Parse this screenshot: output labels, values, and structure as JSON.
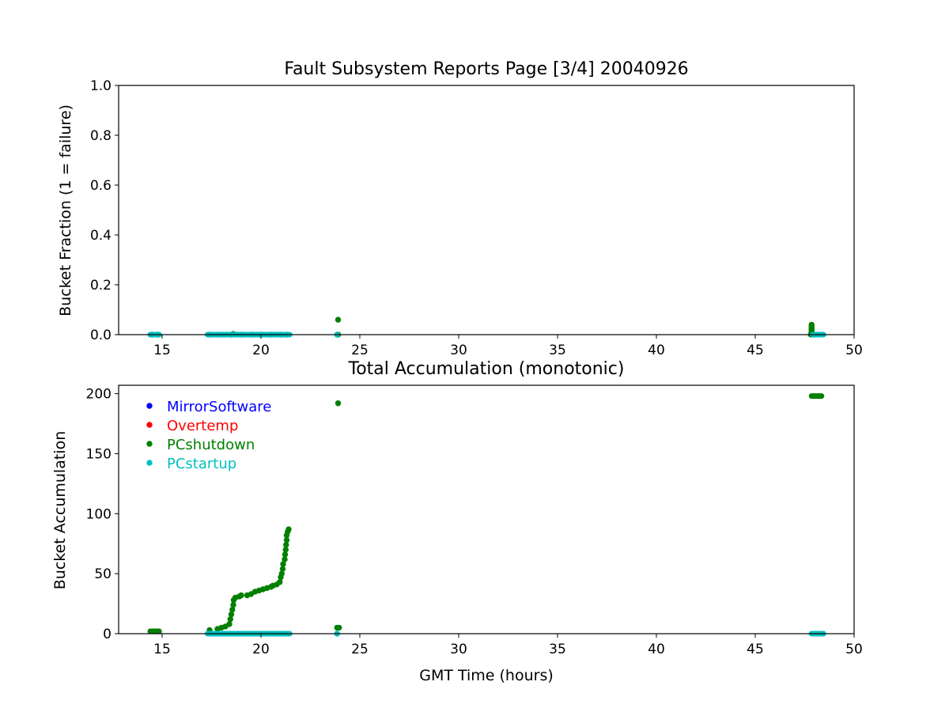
{
  "colors": {
    "MirrorSoftware": "#0000ff",
    "Overtemp": "#ff0000",
    "PCshutdown": "#008000",
    "PCstartup": "#00bfbf"
  },
  "chart_data": [
    {
      "type": "scatter",
      "title": "Fault Subsystem Reports Page [3/4] 20040926",
      "xlabel": "",
      "ylabel": "Bucket Fraction (1 = failure)",
      "xlim": [
        12.8,
        50.0
      ],
      "ylim": [
        0.0,
        1.0
      ],
      "xticks": [
        15,
        20,
        25,
        30,
        35,
        40,
        45,
        50
      ],
      "yticks": [
        0.0,
        0.2,
        0.4,
        0.6,
        0.8,
        1.0
      ],
      "xtick_labels": [
        "15",
        "20",
        "25",
        "30",
        "35",
        "40",
        "45",
        "50"
      ],
      "ytick_labels": [
        "0.0",
        "0.2",
        "0.4",
        "0.6",
        "0.8",
        "1.0"
      ],
      "grid": false,
      "series": [
        {
          "name": "PCshutdown",
          "color": "#008000",
          "points": [
            [
              14.5,
              0.0
            ],
            [
              14.8,
              0.0
            ],
            [
              17.4,
              0.0
            ],
            [
              18.0,
              0.0
            ],
            [
              18.5,
              0.0
            ],
            [
              18.6,
              0.003
            ],
            [
              19.0,
              0.0
            ],
            [
              19.5,
              0.0
            ],
            [
              20.0,
              0.0
            ],
            [
              20.5,
              0.0
            ],
            [
              21.0,
              0.0
            ],
            [
              21.3,
              0.0
            ],
            [
              23.9,
              0.06
            ],
            [
              23.9,
              0.0
            ],
            [
              47.85,
              0.04
            ],
            [
              47.85,
              0.035
            ],
            [
              47.85,
              0.03
            ],
            [
              47.85,
              0.025
            ],
            [
              47.85,
              0.02
            ],
            [
              47.85,
              0.015
            ],
            [
              47.85,
              0.01
            ],
            [
              47.85,
              0.005
            ],
            [
              47.9,
              0.0
            ]
          ],
          "segments": [
            [
              17.4,
              21.4,
              0.0
            ],
            [
              47.8,
              48.1,
              0.0
            ]
          ]
        },
        {
          "name": "PCstartup",
          "color": "#00bfbf",
          "points": [
            [
              23.85,
              0.0
            ]
          ],
          "segments": [
            [
              14.4,
              14.85,
              0.0
            ],
            [
              17.3,
              21.45,
              0.0
            ],
            [
              47.9,
              48.45,
              0.0
            ]
          ]
        }
      ]
    },
    {
      "type": "scatter",
      "title": "Total Accumulation (monotonic)",
      "xlabel": "GMT Time (hours)",
      "ylabel": "Bucket Accumulation",
      "xlim": [
        12.8,
        50.0
      ],
      "ylim": [
        0,
        207
      ],
      "xticks": [
        15,
        20,
        25,
        30,
        35,
        40,
        45,
        50
      ],
      "yticks": [
        0,
        50,
        100,
        150,
        200
      ],
      "xtick_labels": [
        "15",
        "20",
        "25",
        "30",
        "35",
        "40",
        "45",
        "50"
      ],
      "ytick_labels": [
        "0",
        "50",
        "100",
        "150",
        "200"
      ],
      "grid": false,
      "legend": {
        "position": "upper-left",
        "entries": [
          {
            "name": "MirrorSoftware",
            "color": "#0000ff"
          },
          {
            "name": "Overtemp",
            "color": "#ff0000"
          },
          {
            "name": "PCshutdown",
            "color": "#008000"
          },
          {
            "name": "PCstartup",
            "color": "#00bfbf"
          }
        ]
      },
      "series": [
        {
          "name": "PCshutdown",
          "color": "#008000",
          "points": [
            [
              17.4,
              3
            ],
            [
              17.8,
              4
            ],
            [
              18.0,
              5
            ],
            [
              18.2,
              6
            ],
            [
              18.4,
              8
            ],
            [
              18.45,
              12
            ],
            [
              18.5,
              16
            ],
            [
              18.55,
              20
            ],
            [
              18.6,
              24
            ],
            [
              18.62,
              28
            ],
            [
              18.7,
              30
            ],
            [
              18.9,
              31
            ],
            [
              19.0,
              32
            ],
            [
              19.3,
              32
            ],
            [
              19.5,
              33
            ],
            [
              19.7,
              35
            ],
            [
              19.9,
              36
            ],
            [
              20.1,
              37
            ],
            [
              20.3,
              38
            ],
            [
              20.5,
              39
            ],
            [
              20.6,
              40
            ],
            [
              20.8,
              41
            ],
            [
              20.95,
              43
            ],
            [
              21.0,
              47
            ],
            [
              21.05,
              50
            ],
            [
              21.1,
              54
            ],
            [
              21.12,
              58
            ],
            [
              21.2,
              62
            ],
            [
              21.22,
              66
            ],
            [
              21.25,
              70
            ],
            [
              21.27,
              74
            ],
            [
              21.3,
              78
            ],
            [
              21.3,
              82
            ],
            [
              21.35,
              85
            ],
            [
              21.4,
              87
            ],
            [
              23.85,
              5
            ],
            [
              23.95,
              5
            ],
            [
              23.9,
              192
            ]
          ],
          "segments": [
            [
              14.4,
              14.85,
              2
            ],
            [
              47.85,
              48.35,
              198
            ]
          ]
        },
        {
          "name": "PCstartup",
          "color": "#00bfbf",
          "points": [
            [
              23.85,
              0
            ]
          ],
          "segments": [
            [
              17.3,
              21.45,
              0
            ],
            [
              47.85,
              48.45,
              0
            ]
          ]
        }
      ]
    }
  ]
}
